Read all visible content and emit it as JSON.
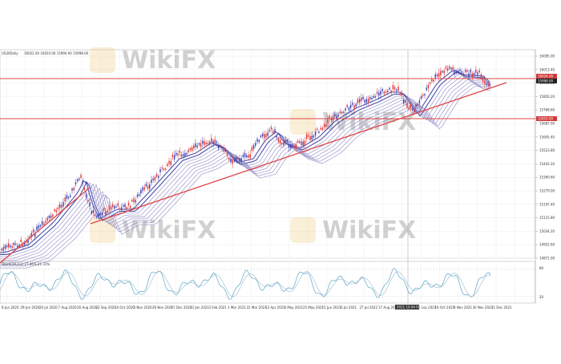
{
  "watermark": {
    "text": "WikiFX"
  },
  "chart_data": {
    "type": "line",
    "title": "US30Daily",
    "header_values": "16022.00 16024.00 15994.00 15998.00",
    "price_labels": [
      "16095.00",
      "16013.40",
      "15931.80",
      "15850.20",
      "15768.60",
      "15687.00",
      "15605.40",
      "15523.80",
      "15442.20",
      "15360.60",
      "15279.00",
      "15197.40",
      "15115.80",
      "15034.20",
      "14952.60",
      "14871.00"
    ],
    "level_tags": [
      "16024.00",
      "15998.00",
      "15810.00"
    ],
    "x_labels": [
      "8 Jun 2020",
      "29 Jun 2020",
      "20 Jul 2020",
      "7 Aug 2020",
      "26 Aug 2020",
      "22 Sep 2020",
      "14 Oct 2020",
      "5 Nov 2020",
      "26 Nov 2020",
      "17 Dec 2020",
      "12 Jan 2021",
      "3 Feb 2021",
      "1 Mar 2021",
      "22 Mar 2021",
      "13 Apr 2021",
      "4 May 2021",
      "25 May 2021",
      "15 Jun 2021",
      "6 Jul 2021",
      "27 Jul 2021",
      "17 Aug 2021",
      "7 Sep 2021",
      "28 Sep 2021",
      "19 Oct 2021",
      "9 Nov 2021",
      "30 Nov 2021",
      "21 Dec 2021"
    ],
    "crosshair_date": "2021.10.04 00:00",
    "indicator": {
      "label": "Stoch(14,3,3) 27.06% 21.31%",
      "scale_labels": [
        "80",
        "20"
      ]
    },
    "colors": {
      "bull": "#3a3fb0",
      "bear": "#e03030",
      "ribbon": "#8d88c4",
      "trend": "#e04545",
      "stoch": "#5aa6c8"
    }
  }
}
